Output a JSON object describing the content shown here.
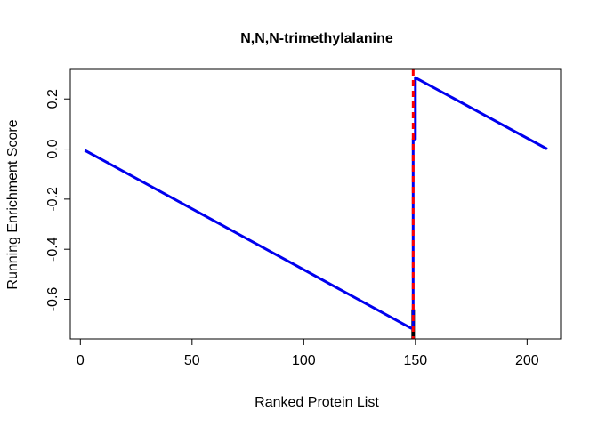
{
  "chart_data": {
    "type": "line",
    "title": "N,N,N-trimethylalanine",
    "xlabel": "Ranked Protein List",
    "ylabel": "Running Enrichment Score",
    "xlim": [
      -4.5,
      215
    ],
    "ylim": [
      -0.758,
      0.318
    ],
    "x_ticks": [
      0,
      50,
      100,
      150,
      200
    ],
    "x_tick_labels": [
      "0",
      "50",
      "100",
      "150",
      "200"
    ],
    "y_ticks": [
      -0.6,
      -0.4,
      -0.2,
      0.0,
      0.2
    ],
    "y_tick_labels": [
      "-0.6",
      "-0.4",
      "-0.2",
      "0.0",
      "0.2"
    ],
    "grid": false,
    "series": [
      {
        "color": "#0000ee",
        "x": [
          2,
          148,
          149,
          149,
          150,
          150,
          209
        ],
        "y": [
          -0.005,
          -0.715,
          -0.715,
          0.04,
          0.04,
          0.285,
          0.0
        ]
      }
    ],
    "vertical_line": {
      "x": 149,
      "color": "#ff0000",
      "style": "dashed"
    },
    "hit_marks": {
      "x": [
        149
      ],
      "color": "#000000"
    }
  }
}
